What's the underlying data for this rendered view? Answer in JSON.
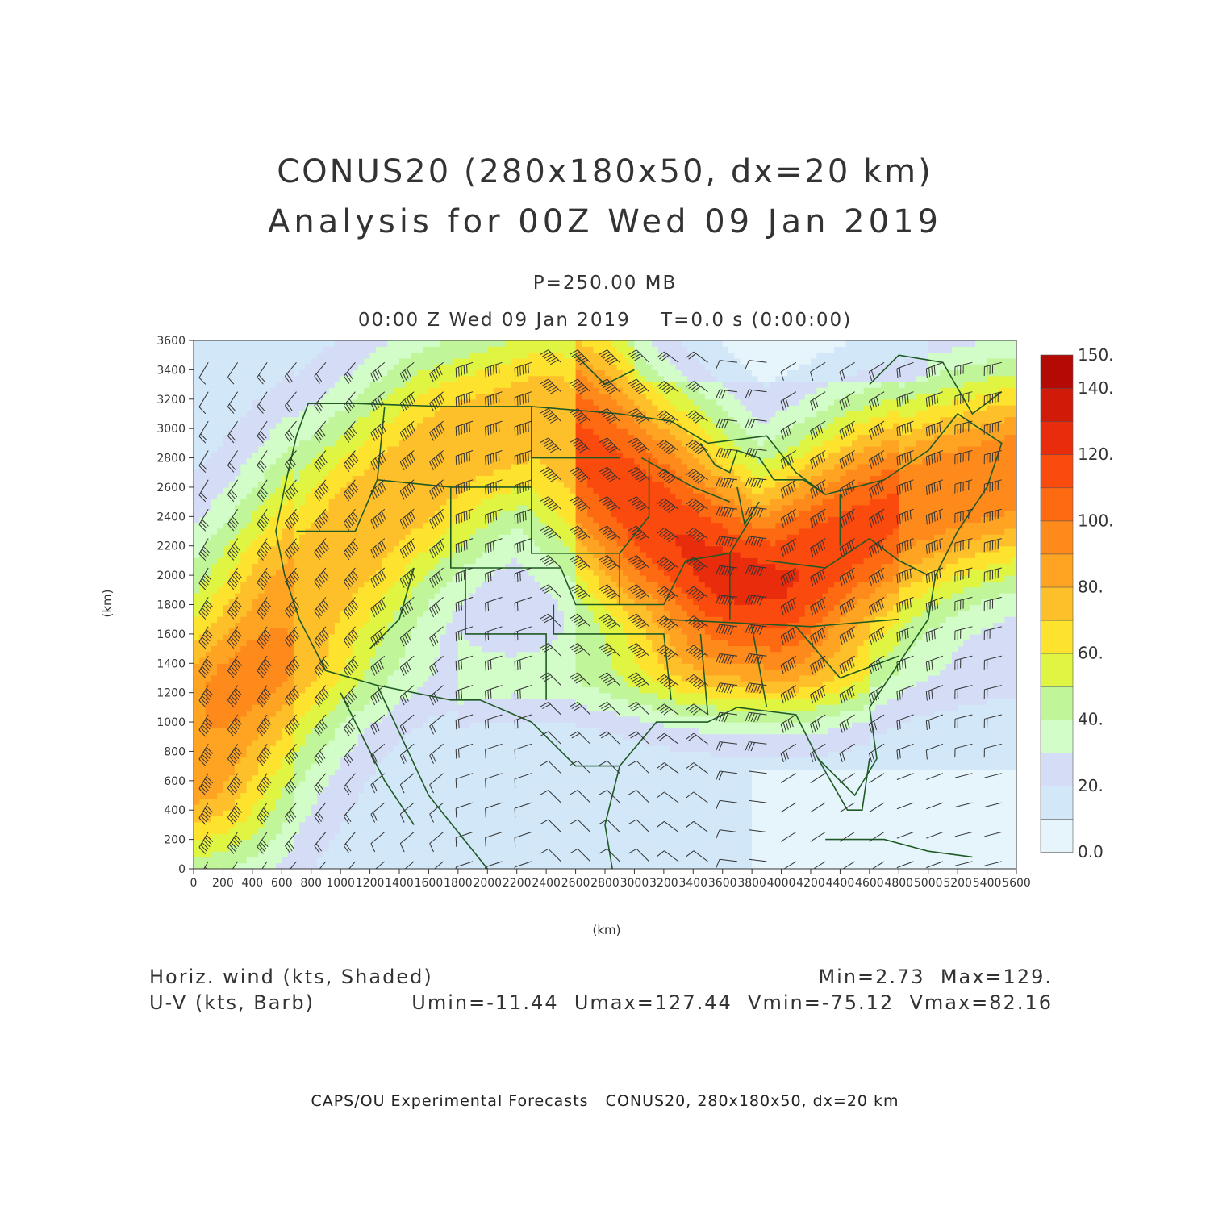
{
  "title": {
    "line1": "CONUS20 (280x180x50, dx=20 km)",
    "line2": "Analysis for 00Z Wed 09 Jan 2019"
  },
  "level_label": "P=250.00 MB",
  "valid_label": "00:00 Z Wed 09 Jan 2019    T=0.0 s (0:00:00)",
  "axes": {
    "x_unit": "(km)",
    "y_unit": "(km)",
    "x_range": [
      0,
      5600
    ],
    "y_range": [
      0,
      3600
    ],
    "x_ticks": [
      "0",
      "200",
      "400",
      "600",
      "800",
      "1000",
      "1200",
      "1400",
      "1600",
      "1800",
      "2000",
      "2200",
      "2400",
      "2600",
      "2800",
      "3000",
      "3200",
      "3400",
      "3600",
      "3800",
      "4000",
      "4200",
      "4400",
      "4600",
      "4800",
      "5000",
      "5200",
      "5400",
      "5600"
    ],
    "y_ticks": [
      "0",
      "200",
      "400",
      "600",
      "800",
      "1000",
      "1200",
      "1400",
      "1600",
      "1800",
      "2000",
      "2200",
      "2400",
      "2600",
      "2800",
      "3000",
      "3200",
      "3400",
      "3600"
    ]
  },
  "colorbar": {
    "labels": [
      "0.0",
      "20.",
      "40.",
      "60.",
      "80.",
      "100.",
      "120.",
      "140.",
      "150."
    ],
    "bounds": [
      0,
      10,
      20,
      30,
      40,
      50,
      60,
      70,
      80,
      90,
      100,
      110,
      120,
      130,
      140,
      150
    ],
    "colors": [
      "#e6f5fc",
      "#d2e7f8",
      "#d4dcf6",
      "#d2fcc8",
      "#c0f59a",
      "#dff542",
      "#fde32e",
      "#fec02a",
      "#fea422",
      "#fe8a1c",
      "#fd6a12",
      "#fb4a0e",
      "#e82c0c",
      "#d21a08",
      "#b40a04"
    ]
  },
  "field_labels": {
    "shaded": "Horiz. wind (kts, Shaded)",
    "barb": "U-V (kts, Barb)"
  },
  "stats": {
    "minmax": "Min=2.73  Max=129.",
    "uv": "Umin=-11.44  Umax=127.44  Vmin=-75.12  Vmax=82.16"
  },
  "footer": "CAPS/OU Experimental Forecasts   CONUS20, 280x180x50, dx=20 km",
  "map": {
    "line_color": "#1f5a24",
    "jet_axis_km": [
      [
        0,
        700
      ],
      [
        300,
        1200
      ],
      [
        700,
        1800
      ],
      [
        1200,
        2400
      ],
      [
        1800,
        2900
      ],
      [
        2400,
        3100
      ],
      [
        2800,
        2700
      ],
      [
        3200,
        2300
      ],
      [
        3600,
        2000
      ],
      [
        4000,
        1950
      ],
      [
        4400,
        2200
      ],
      [
        4800,
        2450
      ],
      [
        5200,
        2600
      ],
      [
        5600,
        2700
      ]
    ],
    "jet_core_peak_kts": 125
  }
}
